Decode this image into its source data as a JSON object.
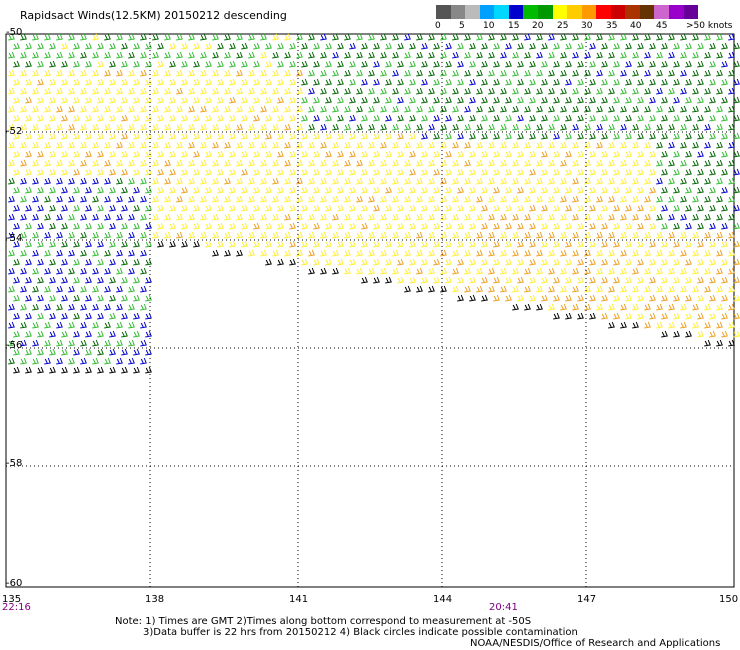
{
  "title": "Rapidsact Winds(12.5KM) 20150212 descending",
  "legend": {
    "colors": [
      "#555555",
      "#888888",
      "#bbbbbb",
      "#00a0ff",
      "#00d8ff",
      "#0000cc",
      "#00bb00",
      "#009900",
      "#ffff00",
      "#ffcc00",
      "#ff9900",
      "#ff0000",
      "#cc0000",
      "#aa3300",
      "#663300",
      "#cc66cc",
      "#9900cc",
      "#660099"
    ],
    "labels": [
      "0",
      "5",
      "10",
      "15",
      "20",
      "25",
      "30",
      "35",
      "40",
      "45",
      ">50 knots"
    ]
  },
  "y_labels": [
    "-50",
    "-52",
    "-54",
    "-56",
    "-58",
    "-60"
  ],
  "x_labels": [
    "135",
    "138",
    "141",
    "144",
    "147",
    "150"
  ],
  "times": [
    "22:16",
    "20:41"
  ],
  "notes": [
    "Note: 1) Times are GMT 2)Times along bottom correspond to measurement at -50S",
    "3)Data buffer is 22 hrs from 20150212 4) Black circles indicate possible contamination"
  ],
  "credit": "NOAA/NESDIS/Office of Research and Applications",
  "colors": {
    "yellow": "#ffee33",
    "orange": "#f0a020",
    "green_light": "#33bb33",
    "green_dark": "#006600",
    "blue": "#0000cc",
    "black": "#000000"
  }
}
